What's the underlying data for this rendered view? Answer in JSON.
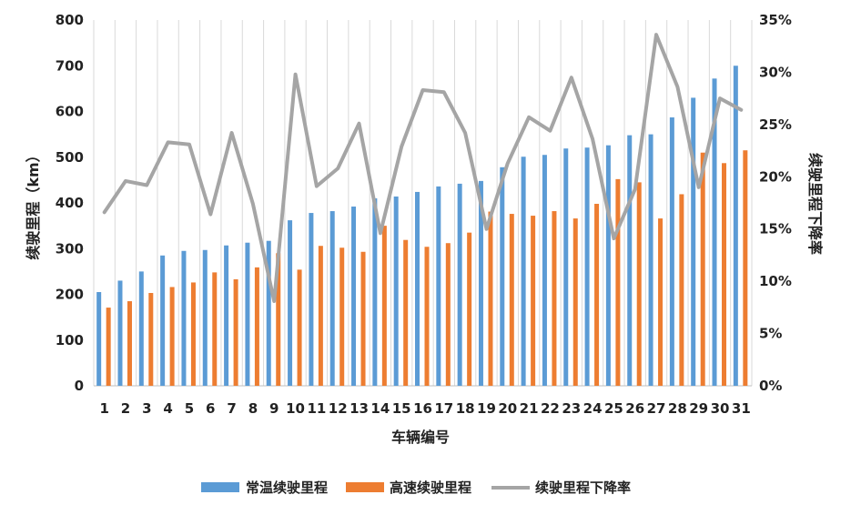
{
  "chart_data": {
    "type": "bar",
    "categories": [
      "1",
      "2",
      "3",
      "4",
      "5",
      "6",
      "7",
      "8",
      "9",
      "10",
      "11",
      "12",
      "13",
      "14",
      "15",
      "16",
      "17",
      "18",
      "19",
      "20",
      "21",
      "22",
      "23",
      "24",
      "25",
      "26",
      "27",
      "28",
      "29",
      "30",
      "31"
    ],
    "series": [
      {
        "name": "常温续驶里程",
        "type": "bar",
        "axis": "left",
        "color": "#5B9BD5",
        "values": [
          205,
          230,
          250,
          285,
          295,
          297,
          307,
          313,
          317,
          362,
          378,
          382,
          392,
          410,
          414,
          424,
          436,
          442,
          448,
          478,
          501,
          505,
          519,
          521,
          526,
          548,
          550,
          587,
          630,
          672,
          700
        ]
      },
      {
        "name": "高速续驶里程",
        "type": "bar",
        "axis": "left",
        "color": "#ED7D31",
        "values": [
          171,
          185,
          203,
          216,
          226,
          248,
          233,
          259,
          290,
          254,
          306,
          302,
          293,
          350,
          319,
          304,
          312,
          335,
          381,
          376,
          372,
          382,
          366,
          398,
          452,
          445,
          366,
          419,
          510,
          487,
          515
        ]
      },
      {
        "name": "续驶里程下降率",
        "type": "line",
        "axis": "right",
        "color": "#A5A5A5",
        "values": [
          16.6,
          19.6,
          19.2,
          23.3,
          23.1,
          16.4,
          24.2,
          17.4,
          8.1,
          29.8,
          19.1,
          20.8,
          25.1,
          14.6,
          22.9,
          28.3,
          28.1,
          24.2,
          15.0,
          21.3,
          25.7,
          24.4,
          29.5,
          23.6,
          14.1,
          18.8,
          33.6,
          28.6,
          19.0,
          27.5,
          26.4
        ]
      }
    ],
    "xlabel": "车辆编号",
    "ylabel_left": "续驶里程（km）",
    "ylabel_right": "续驶里程下降率",
    "ylim_left": [
      0,
      800
    ],
    "ylim_right": [
      0,
      35
    ],
    "yticks_left": [
      "0",
      "100",
      "200",
      "300",
      "400",
      "500",
      "600",
      "700",
      "800"
    ],
    "yticks_right": [
      "0%",
      "5%",
      "10%",
      "15%",
      "20%",
      "25%",
      "30%",
      "35%"
    ],
    "grid": "vertical",
    "legend_position": "bottom"
  }
}
